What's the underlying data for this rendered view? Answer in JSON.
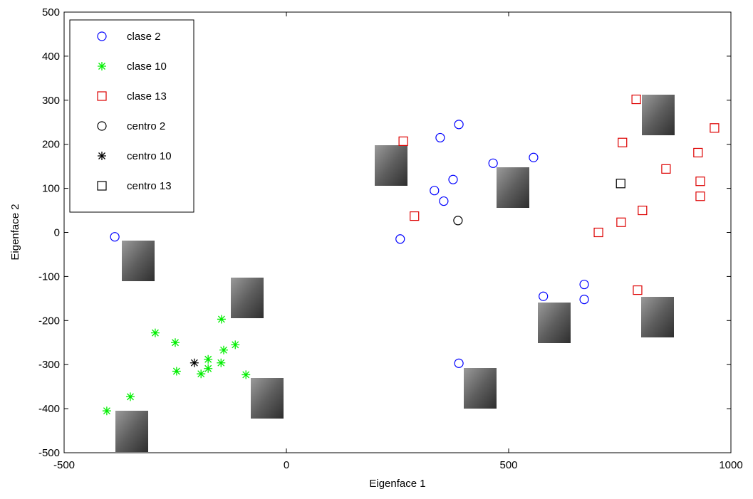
{
  "chart_data": {
    "type": "scatter",
    "xlabel": "Eigenface 1",
    "ylabel": "Eigenface 2",
    "xlim": [
      -500,
      1000
    ],
    "ylim": [
      -500,
      500
    ],
    "xticks": [
      -500,
      0,
      500,
      1000
    ],
    "yticks": [
      -500,
      -400,
      -300,
      -200,
      -100,
      0,
      100,
      200,
      300,
      400,
      500
    ],
    "grid": false,
    "legend": "upper left",
    "series": [
      {
        "name": "clase 2",
        "color": "#0000ff",
        "marker": "o",
        "x": [
          -386,
          256,
          346,
          388,
          333,
          354,
          375,
          465,
          556,
          578,
          670,
          670,
          388
        ],
        "values": [
          -10,
          -15,
          215,
          245,
          95,
          71,
          120,
          157,
          170,
          -145,
          -118,
          -152,
          -297
        ]
      },
      {
        "name": "clase 10",
        "color": "#00ee00",
        "marker": "*",
        "x": [
          -404,
          -351,
          -295,
          -250,
          -247,
          -176,
          -176,
          -192,
          -146,
          -141,
          -147,
          -115,
          -91
        ],
        "values": [
          -405,
          -373,
          -228,
          -250,
          -315,
          -288,
          -309,
          -321,
          -197,
          -267,
          -296,
          -255,
          -323
        ]
      },
      {
        "name": "clase 13",
        "color": "#dd0000",
        "marker": "s",
        "x": [
          263,
          288,
          702,
          753,
          756,
          787,
          801,
          854,
          790,
          926,
          931,
          931,
          963
        ],
        "values": [
          207,
          37,
          0,
          23,
          204,
          302,
          50,
          144,
          -131,
          181,
          116,
          82,
          237
        ]
      },
      {
        "name": "centro 2",
        "color": "#000000",
        "marker": "o",
        "x": [
          386
        ],
        "values": [
          27
        ]
      },
      {
        "name": "centro 10",
        "color": "#000000",
        "marker": "*",
        "x": [
          -207
        ],
        "values": [
          -296
        ]
      },
      {
        "name": "centro 13",
        "color": "#000000",
        "marker": "s",
        "x": [
          752
        ],
        "values": [
          111
        ]
      }
    ]
  }
}
